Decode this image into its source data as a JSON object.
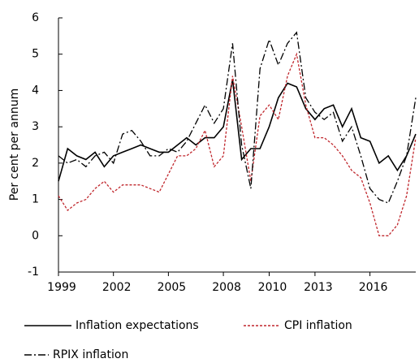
{
  "chart_data": {
    "type": "line",
    "y_label": "Per cent per annum",
    "categories": [
      "1999",
      null,
      null,
      null,
      null,
      null,
      "2002",
      null,
      null,
      null,
      null,
      null,
      "2005",
      null,
      null,
      null,
      null,
      null,
      "2008",
      null,
      null,
      null,
      null,
      "2010",
      null,
      null,
      null,
      null,
      "2013",
      null,
      null,
      null,
      null,
      null,
      "2016",
      null,
      null,
      null,
      null,
      null
    ],
    "series": [
      {
        "name": "Inflation expectations",
        "color": "#000000",
        "dash": "solid",
        "values": [
          1.5,
          2.4,
          2.2,
          2.1,
          2.3,
          1.9,
          2.2,
          2.3,
          2.4,
          2.5,
          2.4,
          2.3,
          2.3,
          2.5,
          2.7,
          2.5,
          2.7,
          2.7,
          3.0,
          4.3,
          2.1,
          2.4,
          2.4,
          3.0,
          3.8,
          4.2,
          4.1,
          3.5,
          3.2,
          3.5,
          3.6,
          3.0,
          3.5,
          2.7,
          2.6,
          2.0,
          2.2,
          1.8,
          2.2,
          2.8
        ]
      },
      {
        "name": "CPI inflation",
        "color": "#c0272d",
        "dash": "dashed",
        "values": [
          1.1,
          0.7,
          0.9,
          1.0,
          1.3,
          1.5,
          1.2,
          1.4,
          1.4,
          1.4,
          1.3,
          1.2,
          1.7,
          2.2,
          2.2,
          2.4,
          2.9,
          1.9,
          2.2,
          4.4,
          3.0,
          1.5,
          3.3,
          3.6,
          3.2,
          4.4,
          5.0,
          3.6,
          2.7,
          2.7,
          2.5,
          2.2,
          1.8,
          1.6,
          0.9,
          0.0,
          0.0,
          0.3,
          1.1,
          2.7
        ]
      },
      {
        "name": "RPIX inflation",
        "color": "#000000",
        "dash": "dashdot",
        "values": [
          2.2,
          2.0,
          2.1,
          1.9,
          2.2,
          2.3,
          2.0,
          2.8,
          2.9,
          2.6,
          2.2,
          2.2,
          2.4,
          2.3,
          2.6,
          3.1,
          3.6,
          3.1,
          3.5,
          5.3,
          2.5,
          1.3,
          4.6,
          5.4,
          4.7,
          5.3,
          5.6,
          3.8,
          3.4,
          3.2,
          3.4,
          2.6,
          3.0,
          2.2,
          1.3,
          1.0,
          0.9,
          1.5,
          2.2,
          3.8
        ]
      }
    ],
    "ylim": [
      -1,
      6
    ],
    "yticks": [
      -1,
      0,
      1,
      2,
      3,
      4,
      5,
      6
    ],
    "legend": "bottom"
  }
}
